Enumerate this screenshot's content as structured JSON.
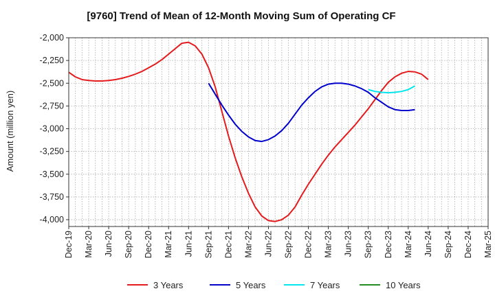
{
  "chart_data": {
    "type": "line",
    "title": "[9760]  Trend of Mean of 12-Month Moving Sum of Operating CF",
    "xlabel": "",
    "ylabel": "Amount (million yen)",
    "ylim": [
      -4075,
      -2000
    ],
    "yticks": [
      -2000,
      -2250,
      -2500,
      -2750,
      -3000,
      -3250,
      -3500,
      -3750,
      -4000
    ],
    "ytick_labels": [
      "-2,000",
      "-2,250",
      "-2,500",
      "-2,750",
      "-3,000",
      "-3,250",
      "-3,500",
      "-3,750",
      "-4,000"
    ],
    "x_start": "Dec-19",
    "x_end": "Mar-25",
    "x_months_total": 63,
    "xtick_labels": [
      "Dec-19",
      "Mar-20",
      "Jun-20",
      "Sep-20",
      "Dec-20",
      "Mar-21",
      "Jun-21",
      "Sep-21",
      "Dec-21",
      "Mar-22",
      "Jun-22",
      "Sep-22",
      "Dec-22",
      "Mar-23",
      "Jun-23",
      "Sep-23",
      "Dec-23",
      "Mar-24",
      "Jun-24",
      "Sep-24",
      "Dec-24",
      "Mar-25"
    ],
    "grid": true,
    "legend_position": "bottom",
    "series": [
      {
        "name": "3 Years",
        "color": "#e41a1c",
        "start_month_index": 0,
        "values": [
          -2380,
          -2430,
          -2460,
          -2470,
          -2475,
          -2475,
          -2470,
          -2460,
          -2445,
          -2425,
          -2400,
          -2370,
          -2330,
          -2290,
          -2240,
          -2180,
          -2120,
          -2060,
          -2050,
          -2090,
          -2180,
          -2330,
          -2540,
          -2810,
          -3080,
          -3320,
          -3530,
          -3710,
          -3860,
          -3960,
          -4010,
          -4020,
          -4000,
          -3950,
          -3860,
          -3730,
          -3610,
          -3500,
          -3390,
          -3290,
          -3200,
          -3120,
          -3040,
          -2960,
          -2870,
          -2780,
          -2680,
          -2580,
          -2490,
          -2430,
          -2390,
          -2370,
          -2375,
          -2400,
          -2460
        ]
      },
      {
        "name": "5 Years",
        "color": "#0000cc",
        "start_month_index": 21,
        "values": [
          -2500,
          -2620,
          -2740,
          -2850,
          -2950,
          -3030,
          -3090,
          -3130,
          -3140,
          -3120,
          -3080,
          -3020,
          -2940,
          -2840,
          -2740,
          -2660,
          -2590,
          -2540,
          -2510,
          -2500,
          -2500,
          -2510,
          -2530,
          -2560,
          -2600,
          -2660,
          -2710,
          -2760,
          -2790,
          -2800,
          -2800,
          -2790
        ]
      },
      {
        "name": "7 Years",
        "color": "#00e5ee",
        "start_month_index": 45,
        "values": [
          -2570,
          -2590,
          -2600,
          -2605,
          -2600,
          -2590,
          -2570,
          -2530
        ]
      },
      {
        "name": "10 Years",
        "color": "#228b22",
        "start_month_index": 0,
        "values": []
      }
    ]
  }
}
